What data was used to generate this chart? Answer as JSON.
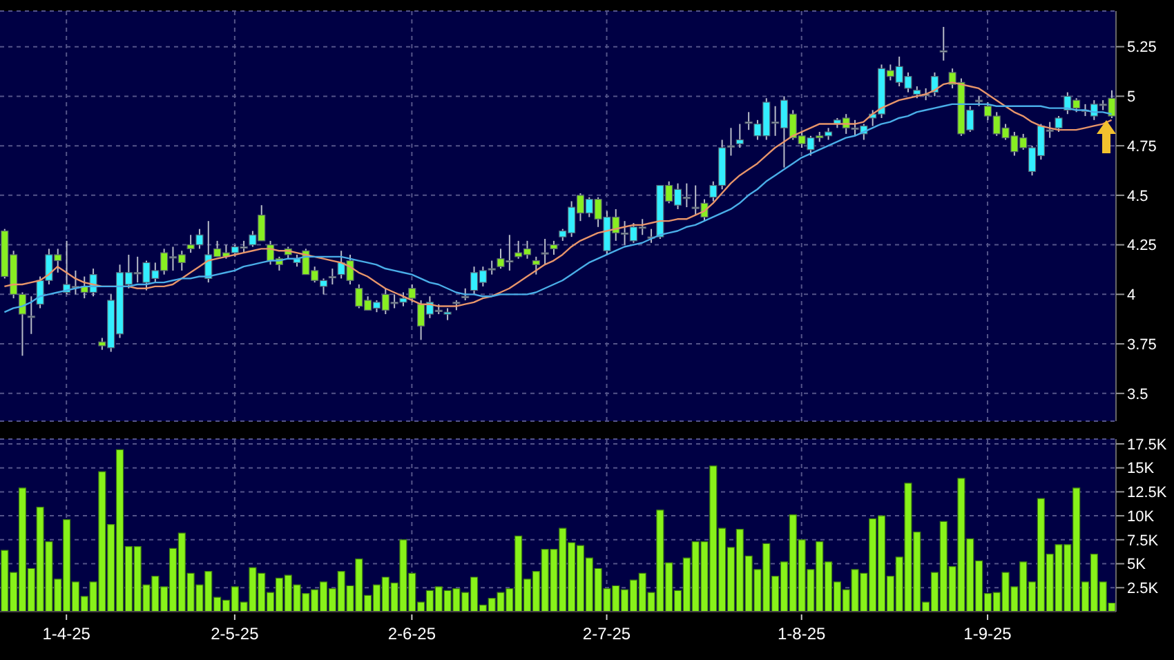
{
  "chart_data": [
    {
      "type": "candlestick",
      "tick_labels": "y",
      "grid": true,
      "categories": [
        null,
        null,
        null,
        null,
        null,
        null,
        null,
        null,
        null,
        null,
        null,
        null,
        null,
        null,
        null,
        null,
        null,
        null,
        null,
        null,
        null,
        null,
        null,
        null,
        null,
        null,
        null,
        null,
        null,
        null,
        null,
        null,
        null,
        null,
        null,
        null,
        null,
        null,
        null,
        null,
        null,
        null,
        null,
        null,
        null,
        null,
        null,
        null,
        null,
        null,
        null,
        null,
        null,
        null,
        null,
        null,
        null,
        null,
        null,
        null,
        null,
        null,
        null,
        null,
        null,
        null,
        null,
        null,
        null,
        null,
        null,
        null,
        null,
        null,
        null,
        null,
        null,
        null,
        null,
        null,
        null,
        null,
        null,
        null,
        null,
        null,
        null,
        null,
        null,
        null,
        null,
        null,
        null,
        null,
        null,
        null,
        null,
        null,
        null,
        null,
        null,
        null,
        null,
        null,
        null,
        null,
        null,
        null,
        null,
        null,
        null,
        null,
        null,
        null,
        null,
        null,
        null,
        null,
        null,
        null,
        null,
        null,
        null,
        null,
        null,
        null
      ],
      "ohlc": [
        [
          4.32,
          4.33,
          4.08,
          4.09
        ],
        [
          4.2,
          4.22,
          3.98,
          4.0
        ],
        [
          4.0,
          4.01,
          3.69,
          3.9
        ],
        [
          3.89,
          3.99,
          3.8,
          3.89
        ],
        [
          3.95,
          4.09,
          3.93,
          4.07
        ],
        [
          4.07,
          4.23,
          4.05,
          4.2
        ],
        [
          4.2,
          4.23,
          4.11,
          4.17
        ],
        [
          4.01,
          4.27,
          4.0,
          4.05
        ],
        [
          4.04,
          4.12,
          4.0,
          4.04
        ],
        [
          4.04,
          4.09,
          3.98,
          4.01
        ],
        [
          4.01,
          4.13,
          3.99,
          4.1
        ],
        [
          3.76,
          3.78,
          3.72,
          3.74
        ],
        [
          3.73,
          4.0,
          3.71,
          3.97
        ],
        [
          3.8,
          4.15,
          3.78,
          4.11
        ],
        [
          4.05,
          4.2,
          4.03,
          4.11
        ],
        [
          4.11,
          4.19,
          4.06,
          4.11
        ],
        [
          4.06,
          4.17,
          4.02,
          4.16
        ],
        [
          4.08,
          4.16,
          4.06,
          4.12
        ],
        [
          4.21,
          4.23,
          4.1,
          4.12
        ],
        [
          4.19,
          4.24,
          4.12,
          4.19
        ],
        [
          4.2,
          4.22,
          4.12,
          4.16
        ],
        [
          4.25,
          4.3,
          4.21,
          4.23
        ],
        [
          4.25,
          4.33,
          4.23,
          4.3
        ],
        [
          4.08,
          4.37,
          4.06,
          4.2
        ],
        [
          4.23,
          4.27,
          4.19,
          4.19
        ],
        [
          4.21,
          4.25,
          4.18,
          4.19
        ],
        [
          4.21,
          4.25,
          4.19,
          4.24
        ],
        [
          4.24,
          4.27,
          4.21,
          4.24
        ],
        [
          4.25,
          4.32,
          4.24,
          4.3
        ],
        [
          4.4,
          4.45,
          4.27,
          4.27
        ],
        [
          4.25,
          4.27,
          4.15,
          4.17
        ],
        [
          4.18,
          4.19,
          4.12,
          4.15
        ],
        [
          4.23,
          4.24,
          4.18,
          4.2
        ],
        [
          4.16,
          4.2,
          4.14,
          4.18
        ],
        [
          4.22,
          4.23,
          4.1,
          4.1
        ],
        [
          4.12,
          4.14,
          4.06,
          4.07
        ],
        [
          4.04,
          4.08,
          4.0,
          4.07
        ],
        [
          4.09,
          4.13,
          4.05,
          4.09
        ],
        [
          4.1,
          4.22,
          4.08,
          4.16
        ],
        [
          4.17,
          4.2,
          4.05,
          4.07
        ],
        [
          4.03,
          4.05,
          3.93,
          3.94
        ],
        [
          3.97,
          3.99,
          3.92,
          3.92
        ],
        [
          3.93,
          3.97,
          3.91,
          3.96
        ],
        [
          4.0,
          4.03,
          3.9,
          3.92
        ],
        [
          3.96,
          4.0,
          3.93,
          3.96
        ],
        [
          3.96,
          4.01,
          3.94,
          3.98
        ],
        [
          4.03,
          4.05,
          3.96,
          3.98
        ],
        [
          3.95,
          3.97,
          3.77,
          3.84
        ],
        [
          3.9,
          3.99,
          3.88,
          3.96
        ],
        [
          3.92,
          3.95,
          3.9,
          3.92
        ],
        [
          3.9,
          3.93,
          3.87,
          3.91
        ],
        [
          3.96,
          3.97,
          3.92,
          3.96
        ],
        [
          3.99,
          4.03,
          3.97,
          3.99
        ],
        [
          4.02,
          4.14,
          4.0,
          4.11
        ],
        [
          4.06,
          4.14,
          4.04,
          4.12
        ],
        [
          4.13,
          4.17,
          4.1,
          4.13
        ],
        [
          4.18,
          4.23,
          4.13,
          4.14
        ],
        [
          4.17,
          4.3,
          4.12,
          4.17
        ],
        [
          4.21,
          4.27,
          4.18,
          4.19
        ],
        [
          4.23,
          4.27,
          4.18,
          4.2
        ],
        [
          4.17,
          4.19,
          4.1,
          4.15
        ],
        [
          4.21,
          4.28,
          4.15,
          4.21
        ],
        [
          4.25,
          4.27,
          4.2,
          4.23
        ],
        [
          4.29,
          4.33,
          4.27,
          4.32
        ],
        [
          4.31,
          4.47,
          4.29,
          4.44
        ],
        [
          4.5,
          4.51,
          4.37,
          4.41
        ],
        [
          4.41,
          4.49,
          4.39,
          4.48
        ],
        [
          4.48,
          4.49,
          4.34,
          4.38
        ],
        [
          4.22,
          4.42,
          4.2,
          4.39
        ],
        [
          4.39,
          4.43,
          4.27,
          4.31
        ],
        [
          4.31,
          4.37,
          4.25,
          4.31
        ],
        [
          4.27,
          4.36,
          4.26,
          4.34
        ],
        [
          4.34,
          4.38,
          4.3,
          4.34
        ],
        [
          4.29,
          4.33,
          4.26,
          4.29
        ],
        [
          4.29,
          4.55,
          4.28,
          4.55
        ],
        [
          4.55,
          4.57,
          4.46,
          4.47
        ],
        [
          4.45,
          4.56,
          4.43,
          4.53
        ],
        [
          4.49,
          4.56,
          4.44,
          4.49
        ],
        [
          4.44,
          4.55,
          4.4,
          4.44
        ],
        [
          4.46,
          4.48,
          4.37,
          4.39
        ],
        [
          4.49,
          4.57,
          4.47,
          4.55
        ],
        [
          4.55,
          4.78,
          4.53,
          4.74
        ],
        [
          4.75,
          4.84,
          4.7,
          4.75
        ],
        [
          4.76,
          4.86,
          4.74,
          4.78
        ],
        [
          4.87,
          4.92,
          4.83,
          4.87
        ],
        [
          4.8,
          4.88,
          4.78,
          4.86
        ],
        [
          4.8,
          4.99,
          4.78,
          4.97
        ],
        [
          4.87,
          4.95,
          4.8,
          4.87
        ],
        [
          4.84,
          5.0,
          4.64,
          4.98
        ],
        [
          4.91,
          4.93,
          4.78,
          4.79
        ],
        [
          4.8,
          4.82,
          4.74,
          4.76
        ],
        [
          4.73,
          4.8,
          4.7,
          4.79
        ],
        [
          4.8,
          4.82,
          4.77,
          4.79
        ],
        [
          4.8,
          4.84,
          4.78,
          4.82
        ],
        [
          4.86,
          4.89,
          4.84,
          4.88
        ],
        [
          4.89,
          4.91,
          4.81,
          4.84
        ],
        [
          4.84,
          4.88,
          4.8,
          4.84
        ],
        [
          4.81,
          4.86,
          4.78,
          4.85
        ],
        [
          4.89,
          4.93,
          4.85,
          4.91
        ],
        [
          4.91,
          5.16,
          4.89,
          5.14
        ],
        [
          5.13,
          5.16,
          5.08,
          5.1
        ],
        [
          5.07,
          5.2,
          5.05,
          5.15
        ],
        [
          5.04,
          5.12,
          5.02,
          5.1
        ],
        [
          5.01,
          5.05,
          4.99,
          5.03
        ],
        [
          5.01,
          5.04,
          4.98,
          5.01
        ],
        [
          5.02,
          5.12,
          5.0,
          5.1
        ],
        [
          5.23,
          5.35,
          5.18,
          5.23
        ],
        [
          5.12,
          5.14,
          5.04,
          5.06
        ],
        [
          5.07,
          5.09,
          4.8,
          4.81
        ],
        [
          4.83,
          4.95,
          4.82,
          4.93
        ],
        [
          4.98,
          5.0,
          4.95,
          4.98
        ],
        [
          4.95,
          4.97,
          4.88,
          4.9
        ],
        [
          4.9,
          4.92,
          4.8,
          4.81
        ],
        [
          4.84,
          4.86,
          4.78,
          4.79
        ],
        [
          4.8,
          4.82,
          4.7,
          4.72
        ],
        [
          4.79,
          4.81,
          4.73,
          4.74
        ],
        [
          4.62,
          4.75,
          4.6,
          4.74
        ],
        [
          4.7,
          4.86,
          4.68,
          4.85
        ],
        [
          4.83,
          4.87,
          4.79,
          4.83
        ],
        [
          4.84,
          4.9,
          4.82,
          4.89
        ],
        [
          4.93,
          5.02,
          4.91,
          5.0
        ],
        [
          4.98,
          4.99,
          4.92,
          4.94
        ],
        [
          4.93,
          4.96,
          4.9,
          4.93
        ],
        [
          4.9,
          4.98,
          4.88,
          4.96
        ],
        [
          4.96,
          4.98,
          4.93,
          4.96
        ],
        [
          4.99,
          5.03,
          4.89,
          4.9
        ]
      ],
      "colors": [
        "#88ee22",
        "#88ee22",
        "#88ee22",
        "#aab0c0",
        "#33eeff",
        "#33eeff",
        "#88ee22",
        "#33eeff",
        "#aab0c0",
        "#88ee22",
        "#33eeff",
        "#88ee22",
        "#33eeff",
        "#33eeff",
        "#33eeff",
        "#aab0c0",
        "#33eeff",
        "#33eeff",
        "#88ee22",
        "#aab0c0",
        "#88ee22",
        "#88ee22",
        "#33eeff",
        "#33eeff",
        "#88ee22",
        "#88ee22",
        "#33eeff",
        "#aab0c0",
        "#33eeff",
        "#88ee22",
        "#88ee22",
        "#88ee22",
        "#88ee22",
        "#33eeff",
        "#88ee22",
        "#88ee22",
        "#33eeff",
        "#aab0c0",
        "#33eeff",
        "#88ee22",
        "#88ee22",
        "#88ee22",
        "#33eeff",
        "#88ee22",
        "#aab0c0",
        "#33eeff",
        "#88ee22",
        "#88ee22",
        "#33eeff",
        "#aab0c0",
        "#33eeff",
        "#aab0c0",
        "#aab0c0",
        "#33eeff",
        "#33eeff",
        "#aab0c0",
        "#88ee22",
        "#aab0c0",
        "#88ee22",
        "#88ee22",
        "#88ee22",
        "#aab0c0",
        "#88ee22",
        "#33eeff",
        "#33eeff",
        "#88ee22",
        "#33eeff",
        "#88ee22",
        "#33eeff",
        "#88ee22",
        "#aab0c0",
        "#33eeff",
        "#aab0c0",
        "#aab0c0",
        "#33eeff",
        "#88ee22",
        "#33eeff",
        "#aab0c0",
        "#aab0c0",
        "#88ee22",
        "#33eeff",
        "#33eeff",
        "#aab0c0",
        "#33eeff",
        "#aab0c0",
        "#33eeff",
        "#33eeff",
        "#aab0c0",
        "#33eeff",
        "#88ee22",
        "#88ee22",
        "#33eeff",
        "#88ee22",
        "#33eeff",
        "#33eeff",
        "#88ee22",
        "#aab0c0",
        "#33eeff",
        "#33eeff",
        "#33eeff",
        "#88ee22",
        "#33eeff",
        "#33eeff",
        "#33eeff",
        "#aab0c0",
        "#33eeff",
        "#aab0c0",
        "#88ee22",
        "#88ee22",
        "#33eeff",
        "#aab0c0",
        "#88ee22",
        "#88ee22",
        "#88ee22",
        "#88ee22",
        "#88ee22",
        "#33eeff",
        "#33eeff",
        "#aab0c0",
        "#33eeff",
        "#33eeff",
        "#88ee22",
        "#aab0c0",
        "#33eeff",
        "#aab0c0",
        "#88ee22"
      ],
      "series": [
        {
          "type": "line",
          "color": "#e8956a",
          "values": [
            4.04,
            4.05,
            4.05,
            4.06,
            4.07,
            4.1,
            4.14,
            4.11,
            4.08,
            4.06,
            4.05,
            4.04,
            4.04,
            4.04,
            4.04,
            4.03,
            4.03,
            4.04,
            4.04,
            4.05,
            4.08,
            4.11,
            4.14,
            4.17,
            4.18,
            4.19,
            4.2,
            4.21,
            4.22,
            4.23,
            4.23,
            4.22,
            4.22,
            4.21,
            4.2,
            4.19,
            4.18,
            4.17,
            4.16,
            4.14,
            4.11,
            4.09,
            4.06,
            4.03,
            4.01,
            3.99,
            3.97,
            3.95,
            3.95,
            3.94,
            3.94,
            3.94,
            3.95,
            3.96,
            3.98,
            3.99,
            4.01,
            4.03,
            4.06,
            4.09,
            4.12,
            4.15,
            4.17,
            4.2,
            4.24,
            4.27,
            4.29,
            4.31,
            4.32,
            4.33,
            4.34,
            4.35,
            4.35,
            4.36,
            4.37,
            4.37,
            4.38,
            4.38,
            4.4,
            4.42,
            4.46,
            4.51,
            4.56,
            4.6,
            4.63,
            4.66,
            4.7,
            4.74,
            4.77,
            4.8,
            4.82,
            4.84,
            4.86,
            4.86,
            4.86,
            4.86,
            4.86,
            4.87,
            4.91,
            4.94,
            4.96,
            4.98,
            4.99,
            5.0,
            5.01,
            5.03,
            5.06,
            5.07,
            5.06,
            5.05,
            5.04,
            5.01,
            4.98,
            4.95,
            4.92,
            4.9,
            4.87,
            4.85,
            4.84,
            4.83,
            4.83,
            4.83,
            4.84,
            4.85,
            4.86,
            4.88
          ]
        },
        {
          "type": "line",
          "color": "#4aaee8",
          "values": [
            3.91,
            3.93,
            3.94,
            3.96,
            3.99,
            4.0,
            4.01,
            4.02,
            4.03,
            4.04,
            4.04,
            4.04,
            4.04,
            4.04,
            4.04,
            4.05,
            4.05,
            4.06,
            4.06,
            4.07,
            4.08,
            4.08,
            4.09,
            4.09,
            4.1,
            4.11,
            4.12,
            4.14,
            4.15,
            4.16,
            4.17,
            4.17,
            4.18,
            4.18,
            4.19,
            4.19,
            4.19,
            4.19,
            4.19,
            4.18,
            4.17,
            4.16,
            4.15,
            4.13,
            4.12,
            4.11,
            4.1,
            4.08,
            4.06,
            4.05,
            4.03,
            4.01,
            4.0,
            4.0,
            3.99,
            3.99,
            4.0,
            4.0,
            4.0,
            4.0,
            4.01,
            4.03,
            4.05,
            4.07,
            4.1,
            4.13,
            4.16,
            4.18,
            4.2,
            4.22,
            4.24,
            4.25,
            4.26,
            4.28,
            4.3,
            4.31,
            4.32,
            4.34,
            4.35,
            4.37,
            4.39,
            4.41,
            4.43,
            4.46,
            4.5,
            4.53,
            4.57,
            4.6,
            4.63,
            4.66,
            4.69,
            4.71,
            4.73,
            4.75,
            4.77,
            4.79,
            4.8,
            4.82,
            4.84,
            4.86,
            4.87,
            4.89,
            4.9,
            4.92,
            4.93,
            4.94,
            4.95,
            4.96,
            4.96,
            4.96,
            4.96,
            4.96,
            4.95,
            4.95,
            4.95,
            4.95,
            4.95,
            4.95,
            4.94,
            4.94,
            4.94,
            4.93,
            4.93,
            4.92,
            4.92,
            4.91
          ]
        }
      ],
      "ylim": [
        3.36,
        5.43
      ],
      "yticks": [
        3.5,
        3.75,
        4,
        4.25,
        4.5,
        4.75,
        5,
        5.25
      ]
    },
    {
      "type": "bar",
      "grid": true,
      "color": "#88f21a",
      "categories": [
        null,
        null,
        null,
        null,
        null,
        null,
        null,
        "1-4-25",
        null,
        null,
        null,
        null,
        null,
        null,
        null,
        null,
        null,
        null,
        null,
        null,
        null,
        null,
        null,
        null,
        null,
        null,
        "2-5-25",
        null,
        null,
        null,
        null,
        null,
        null,
        null,
        null,
        null,
        null,
        null,
        null,
        null,
        null,
        null,
        null,
        null,
        null,
        null,
        "2-6-25",
        null,
        null,
        null,
        null,
        null,
        null,
        null,
        null,
        null,
        null,
        null,
        null,
        null,
        null,
        null,
        null,
        null,
        null,
        null,
        null,
        null,
        "2-7-25",
        null,
        null,
        null,
        null,
        null,
        null,
        null,
        null,
        null,
        null,
        null,
        null,
        null,
        null,
        null,
        null,
        null,
        null,
        null,
        null,
        null,
        "1-8-25",
        null,
        null,
        null,
        null,
        null,
        null,
        null,
        null,
        null,
        null,
        null,
        null,
        null,
        null,
        null,
        null,
        null,
        null,
        null,
        null,
        "1-9-25",
        null,
        null,
        null,
        null,
        null,
        null,
        null,
        null,
        null,
        null,
        null,
        null,
        null,
        null
      ],
      "values": [
        6400,
        4100,
        12900,
        4500,
        10900,
        7300,
        3400,
        9600,
        3100,
        1600,
        3100,
        14600,
        9100,
        16900,
        6800,
        6800,
        2800,
        3700,
        2600,
        6600,
        8200,
        4000,
        2800,
        4200,
        1500,
        1200,
        2600,
        1000,
        4600,
        4000,
        2000,
        3500,
        3800,
        2800,
        1900,
        2300,
        3100,
        2400,
        4200,
        2700,
        5500,
        1700,
        2800,
        3600,
        3000,
        7500,
        4000,
        1000,
        2200,
        2600,
        2200,
        2400,
        2000,
        3600,
        700,
        1400,
        2000,
        2400,
        7900,
        3400,
        4200,
        6500,
        6500,
        8700,
        7200,
        6900,
        5600,
        4500,
        2400,
        2700,
        2300,
        3300,
        4000,
        2000,
        10600,
        5100,
        2200,
        5600,
        7300,
        7300,
        15200,
        8700,
        6700,
        8600,
        5800,
        4400,
        7100,
        3700,
        5200,
        10100,
        7500,
        4400,
        7300,
        5200,
        3100,
        2300,
        4400,
        4000,
        9700,
        10000,
        3700,
        5700,
        13400,
        8300,
        1000,
        4100,
        9400,
        4700,
        13900,
        7600,
        5300,
        1900,
        2000,
        4100,
        2600,
        5200,
        3100,
        11800,
        6000,
        7000,
        7000,
        12900,
        3100,
        6000,
        3100,
        900
      ],
      "ylim": [
        0,
        18000
      ],
      "yticks": [
        {
          "value": 2500,
          "label": "2.5K"
        },
        {
          "value": 5000,
          "label": "5K"
        },
        {
          "value": 7500,
          "label": "7.5K"
        },
        {
          "value": 10000,
          "label": "10K"
        },
        {
          "value": 12500,
          "label": "12.5K"
        },
        {
          "value": 15000,
          "label": "15K"
        },
        {
          "value": 17500,
          "label": "17.5K"
        }
      ]
    }
  ]
}
